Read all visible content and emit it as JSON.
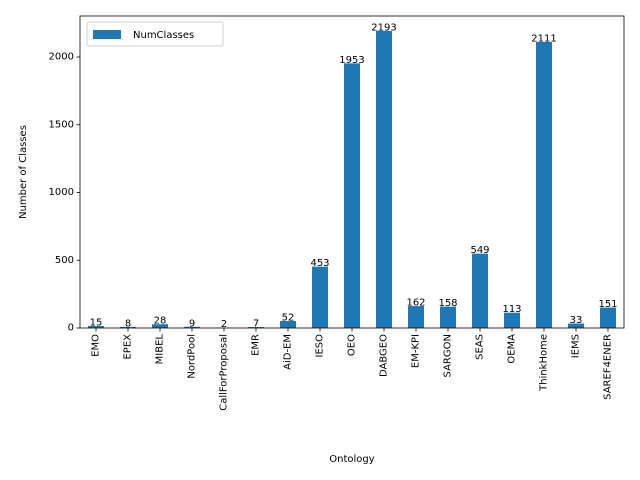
{
  "chart_data": {
    "type": "bar",
    "xlabel": "Ontology",
    "ylabel": "Number of Classes",
    "categories": [
      "EMO",
      "EPEX",
      "MIBEL",
      "NordPool",
      "CallForProposal",
      "EMR",
      "AiD-EM",
      "IESO",
      "OEO",
      "DABGEO",
      "EM-KPI",
      "SARGON",
      "SEAS",
      "OEMA",
      "ThinkHome",
      "IEMS",
      "SAREF4ENER"
    ],
    "series": [
      {
        "name": "NumClasses",
        "values": [
          15,
          8,
          28,
          9,
          2,
          7,
          52,
          453,
          1953,
          2193,
          162,
          158,
          549,
          113,
          2111,
          33,
          151
        ],
        "color": "#1f77b4"
      }
    ],
    "ylim": [
      0,
      2302.65
    ],
    "yticks": [
      0,
      500,
      1000,
      1500,
      2000
    ],
    "data_labels": true,
    "grid": false,
    "legend_position": "top-left"
  }
}
